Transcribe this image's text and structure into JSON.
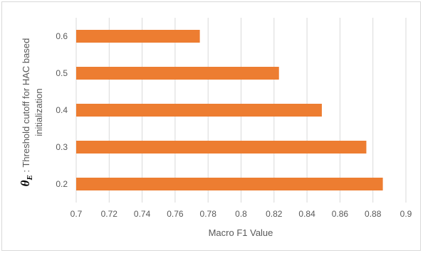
{
  "chart_data": {
    "type": "bar",
    "orientation": "horizontal",
    "categories": [
      "0.2",
      "0.3",
      "0.4",
      "0.5",
      "0.6"
    ],
    "values": [
      0.886,
      0.876,
      0.849,
      0.823,
      0.775
    ],
    "title": "",
    "xlabel": "Macro F1 Value",
    "ylabel_symbol": "θ",
    "ylabel_subscript": "E",
    "ylabel_line1": " : Threshold cutoff for HAC based",
    "ylabel_line2": "initialization",
    "xlim": [
      0.7,
      0.9
    ],
    "x_ticks": [
      "0.7",
      "0.72",
      "0.74",
      "0.76",
      "0.78",
      "0.8",
      "0.82",
      "0.84",
      "0.86",
      "0.88",
      "0.9"
    ],
    "grid": "vertical",
    "bar_color": "#ED7D31",
    "grid_color": "#d9d9d9"
  }
}
